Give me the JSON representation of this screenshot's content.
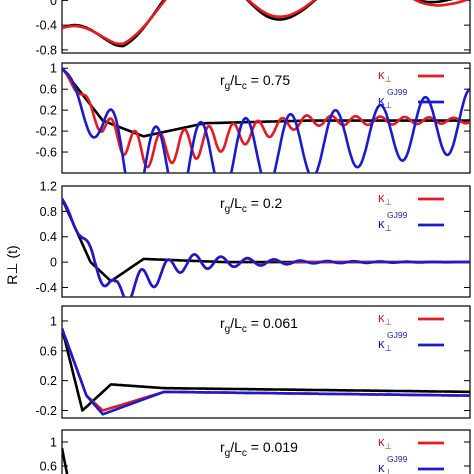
{
  "chart_data": {
    "type": "line",
    "title": "",
    "xlabel": "",
    "ylabel": "R⊥ (t)",
    "colors": {
      "black": "#000000",
      "red": "#e8191f",
      "blue": "#1a1ad0"
    },
    "legend_placement": "top-right",
    "panels": [
      {
        "id": "p0",
        "annotation": "",
        "ylim": [
          -0.85,
          0.2
        ],
        "yticks": [
          {
            "v": 0,
            "label": "0"
          },
          {
            "v": -0.4,
            "label": "-0.4"
          },
          {
            "v": -0.8,
            "label": "-0.8"
          }
        ],
        "legend": [],
        "series": [
          {
            "key": "black",
            "color": "#000000",
            "model": {
              "pts": [
                [
                  0.0,
                  -0.45
                ],
                [
                  0.13,
                  -0.3
                ],
                [
                  0.33,
                  0.1
                ],
                [
                  0.57,
                  0.12
                ],
                [
                  0.88,
                  0.1
                ],
                [
                  0.95,
                  0.15
                ]
              ],
              "mid": 0.04,
              "amp": [
                [
                  0.0,
                  0.5
                ],
                [
                  0.5,
                  0.45
                ],
                [
                  0.8,
                  0.25
                ],
                [
                  1.0,
                  0.1
                ]
              ],
              "period": 0.4,
              "phase": -0.06
            }
          },
          {
            "key": "red",
            "color": "#e8191f",
            "model": {
              "pts": [
                [
                  0.0,
                  -0.45
                ],
                [
                  0.13,
                  -0.35
                ],
                [
                  0.33,
                  0.1
                ],
                [
                  0.57,
                  0.12
                ],
                [
                  0.88,
                  0.1
                ],
                [
                  0.95,
                  0.15
                ]
              ],
              "mid": 0.04,
              "amp": [
                [
                  0.0,
                  0.4
                ],
                [
                  0.5,
                  0.4
                ],
                [
                  0.8,
                  0.25
                ],
                [
                  1.0,
                  0.2
                ]
              ],
              "period": 0.4,
              "phase": -0.06
            }
          }
        ]
      },
      {
        "id": "p1",
        "annotation": "r_g/L_c = 0.75",
        "ylim": [
          -1.0,
          1.1
        ],
        "yticks": [
          {
            "v": 1,
            "label": "1"
          },
          {
            "v": 0.6,
            "label": "0.6"
          },
          {
            "v": 0.2,
            "label": "0.2"
          },
          {
            "v": -0.2,
            "label": "-0.2"
          },
          {
            "v": -0.6,
            "label": "-0.6"
          }
        ],
        "legend": [
          {
            "symbol": "κ",
            "sub": "⊥",
            "sup": "",
            "color": "#e8191f"
          },
          {
            "symbol": "κ",
            "sub": "⊥",
            "sup": "GJ99",
            "color": "#1a1ad0"
          }
        ],
        "series": [
          {
            "key": "black",
            "color": "#000000",
            "model": {
              "pts": [
                [
                  0.0,
                  1.0
                ],
                [
                  0.1,
                  0.0
                ],
                [
                  0.2,
                  -0.3
                ],
                [
                  0.35,
                  -0.05
                ],
                [
                  0.6,
                  0.0
                ],
                [
                  1.0,
                  0.0
                ]
              ]
            }
          },
          {
            "key": "red",
            "color": "#e8191f",
            "model": {
              "pts": [
                [
                  0.0,
                  1.0
                ],
                [
                  0.1,
                  -0.1
                ],
                [
                  0.2,
                  -0.6
                ],
                [
                  0.35,
                  -0.4
                ],
                [
                  0.6,
                  0.0
                ],
                [
                  1.0,
                  0.0
                ]
              ],
              "mid": 0.0,
              "amp": [
                [
                  0.0,
                  0.3
                ],
                [
                  0.33,
                  0.3
                ],
                [
                  0.6,
                  0.1
                ],
                [
                  1.0,
                  0.05
                ]
              ],
              "period": 0.06,
              "phase": 0.0
            }
          },
          {
            "key": "blue",
            "color": "#1a1ad0",
            "model": {
              "pts": [
                [
                  0.0,
                  1.0
                ],
                [
                  0.1,
                  -0.3
                ],
                [
                  0.2,
                  -0.95
                ],
                [
                  1.0,
                  0.0
                ]
              ],
              "mid": 0.0,
              "amp": [
                [
                  0.0,
                  0.8
                ],
                [
                  0.25,
                  0.8
                ],
                [
                  0.75,
                  0.55
                ],
                [
                  1.0,
                  0.6
                ]
              ],
              "period": 0.11,
              "phase": 0.12
            }
          }
        ]
      },
      {
        "id": "p2",
        "annotation": "r_g/L_c = 0.2",
        "ylim": [
          -0.55,
          1.2
        ],
        "yticks": [
          {
            "v": 1.2,
            "label": "1.2"
          },
          {
            "v": 0.8,
            "label": "0.8"
          },
          {
            "v": 0.4,
            "label": "0.4"
          },
          {
            "v": 0,
            "label": "0"
          },
          {
            "v": -0.4,
            "label": "-0.4"
          }
        ],
        "legend": [
          {
            "symbol": "κ",
            "sub": "⊥",
            "sup": "",
            "color": "#e8191f"
          },
          {
            "symbol": "κ",
            "sub": "⊥",
            "sup": "GJ99",
            "color": "#1a1ad0"
          }
        ],
        "series": [
          {
            "key": "black",
            "color": "#000000",
            "model": {
              "pts": [
                [
                  0.0,
                  1.0
                ],
                [
                  0.07,
                  0.0
                ],
                [
                  0.12,
                  -0.3
                ],
                [
                  0.2,
                  0.05
                ],
                [
                  0.4,
                  0.0
                ],
                [
                  1.0,
                  0.0
                ]
              ]
            }
          },
          {
            "key": "red",
            "color": "#e8191f",
            "model": {
              "pts": [
                [
                  0.0,
                  1.0
                ],
                [
                  0.08,
                  0.0
                ],
                [
                  0.13,
                  -0.5
                ],
                [
                  0.3,
                  0.0
                ],
                [
                  1.0,
                  0.0
                ]
              ],
              "mid": 0.0,
              "amp": [
                [
                  0.0,
                  0.3
                ],
                [
                  0.4,
                  0.08
                ],
                [
                  0.6,
                  0.0
                ],
                [
                  1.0,
                  0.0
                ]
              ],
              "period": 0.065,
              "phase": 0.0
            }
          },
          {
            "key": "blue",
            "color": "#1a1ad0",
            "model": {
              "pts": [
                [
                  0.0,
                  1.0
                ],
                [
                  0.08,
                  0.0
                ],
                [
                  0.13,
                  -0.5
                ],
                [
                  0.3,
                  0.0
                ],
                [
                  1.0,
                  0.0
                ]
              ],
              "mid": 0.0,
              "amp": [
                [
                  0.0,
                  0.3
                ],
                [
                  0.4,
                  0.08
                ],
                [
                  0.6,
                  0.02
                ],
                [
                  1.0,
                  0.0
                ]
              ],
              "period": 0.065,
              "phase": 0.0
            }
          }
        ]
      },
      {
        "id": "p3",
        "annotation": "r_g/L_c = 0.061",
        "ylim": [
          -0.3,
          1.2
        ],
        "yticks": [
          {
            "v": 1,
            "label": "1"
          },
          {
            "v": 0.6,
            "label": "0.6"
          },
          {
            "v": 0.2,
            "label": "0.2"
          },
          {
            "v": -0.2,
            "label": "-0.2"
          }
        ],
        "legend": [
          {
            "symbol": "κ",
            "sub": "⊥",
            "sup": "",
            "color": "#e8191f"
          },
          {
            "symbol": "κ",
            "sub": "⊥",
            "sup": "GJ99",
            "color": "#1a1ad0"
          }
        ],
        "series": [
          {
            "key": "black",
            "color": "#000000",
            "model": {
              "pts": [
                [
                  0.0,
                  0.9
                ],
                [
                  0.05,
                  -0.2
                ],
                [
                  0.12,
                  0.15
                ],
                [
                  0.25,
                  0.1
                ],
                [
                  1.0,
                  0.05
                ]
              ]
            }
          },
          {
            "key": "red",
            "color": "#e8191f",
            "model": {
              "pts": [
                [
                  0.0,
                  0.9
                ],
                [
                  0.06,
                  0.0
                ],
                [
                  0.1,
                  -0.2
                ],
                [
                  0.25,
                  0.05
                ],
                [
                  1.0,
                  0.0
                ]
              ]
            }
          },
          {
            "key": "blue",
            "color": "#1a1ad0",
            "model": {
              "pts": [
                [
                  0.0,
                  0.9
                ],
                [
                  0.06,
                  0.0
                ],
                [
                  0.1,
                  -0.25
                ],
                [
                  0.25,
                  0.05
                ],
                [
                  1.0,
                  0.0
                ]
              ]
            }
          }
        ]
      },
      {
        "id": "p4",
        "annotation": "r_g/L_c = 0.019",
        "ylim": [
          0.2,
          1.2
        ],
        "yticks": [
          {
            "v": 1,
            "label": "1"
          },
          {
            "v": 0.6,
            "label": "0.6"
          }
        ],
        "legend": [
          {
            "symbol": "κ",
            "sub": "⊥",
            "sup": "",
            "color": "#e8191f"
          },
          {
            "symbol": "κ",
            "sub": "⊥",
            "sup": "GJ99",
            "color": "#1a1ad0"
          }
        ],
        "series": [
          {
            "key": "black",
            "color": "#000000",
            "model": {
              "pts": [
                [
                  0.0,
                  0.9
                ],
                [
                  0.02,
                  0.2
                ]
              ]
            }
          }
        ]
      }
    ]
  }
}
